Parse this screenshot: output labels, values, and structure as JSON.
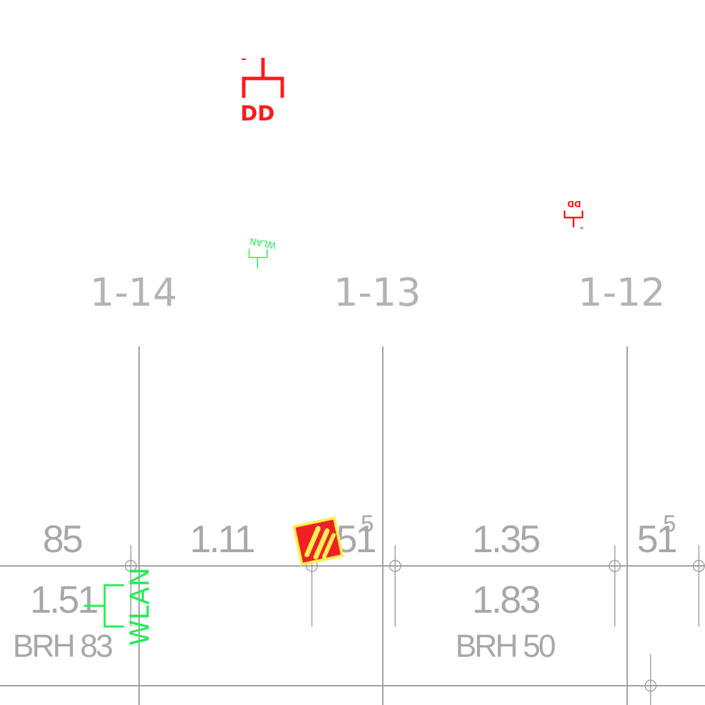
{
  "axis_labels": [
    "1-14",
    "1-13",
    "1-12"
  ],
  "dimensions": {
    "d85": "85",
    "d111": "1.11",
    "d51a": "51",
    "d51a_sup": "5",
    "d135": "1.35",
    "d51b": "51",
    "d51b_sup": "5",
    "d151": "1.51",
    "d183": "1.83"
  },
  "openings": {
    "brh83": "BRH 83",
    "brh50": "BRH 50"
  },
  "symbols": {
    "dd_large": "DD",
    "dd_small": "DD",
    "wlan_small": "WLAN",
    "wlan_large": "WLAN"
  },
  "colors": {
    "grid": "#a0a0a0",
    "dd": "#ff1a1a",
    "wlan": "#22ee55",
    "hazard_fill": "#ee2222",
    "hazard_stripe": "#ffee55"
  }
}
